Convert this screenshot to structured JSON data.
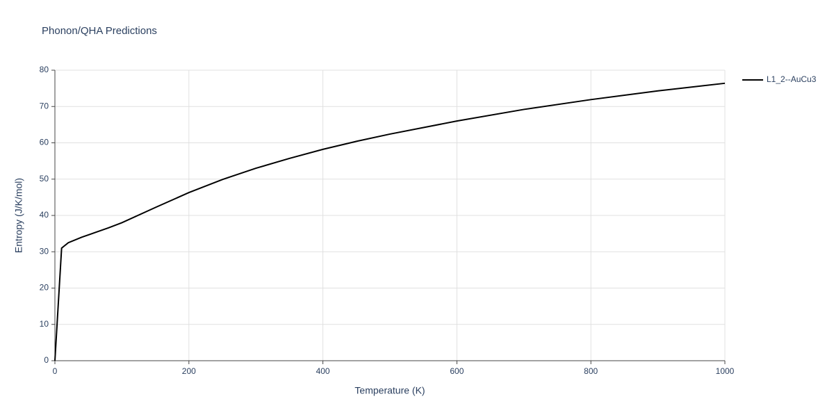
{
  "chart_data": {
    "type": "line",
    "title": "Phonon/QHA Predictions",
    "x_label": "Temperature (K)",
    "y_label": "Entropy (J/K/mol)",
    "x": [
      0,
      10,
      20,
      40,
      60,
      80,
      100,
      150,
      200,
      250,
      300,
      350,
      400,
      450,
      500,
      600,
      700,
      800,
      900,
      1000
    ],
    "series": [
      {
        "name": "L1_2--AuCu3",
        "color": "#000000",
        "values": [
          0,
          31,
          32.5,
          34,
          35.3,
          36.6,
          38,
          42.2,
          46.3,
          49.9,
          53,
          55.7,
          58.2,
          60.4,
          62.4,
          66,
          69.2,
          71.9,
          74.3,
          76.4
        ]
      }
    ],
    "xlim": [
      0,
      1000
    ],
    "xticks": [
      0,
      200,
      400,
      600,
      800,
      1000
    ],
    "ylim": [
      0,
      80
    ],
    "yticks": [
      0,
      10,
      20,
      30,
      40,
      50,
      60,
      70,
      80
    ],
    "grid": true,
    "legend": "right"
  }
}
